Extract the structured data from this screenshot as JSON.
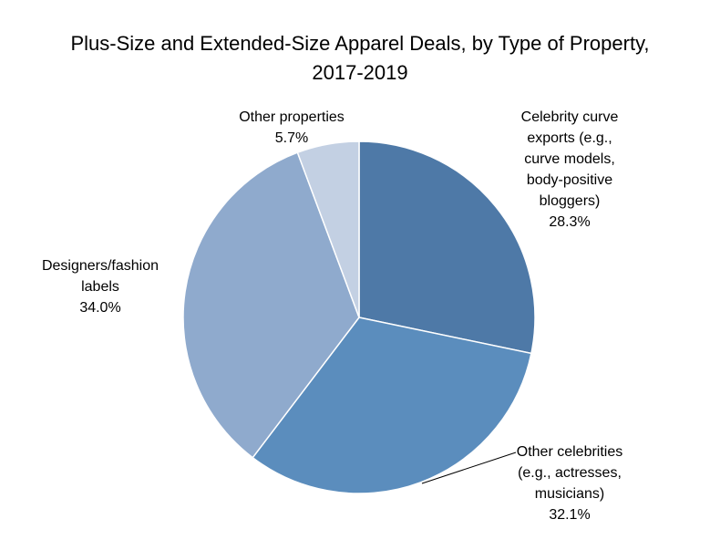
{
  "chart_data": {
    "type": "pie",
    "title_lines": [
      "Plus-Size and Extended-Size Apparel Deals, by Type of Property,",
      "2017-2019"
    ],
    "slices": [
      {
        "label_lines": [
          "Celebrity curve",
          "exports (e.g.,",
          "curve models,",
          "body-positive",
          "bloggers)"
        ],
        "value": 28.3,
        "value_label": "28.3%",
        "color": "#4e79a7"
      },
      {
        "label_lines": [
          "Other celebrities",
          "(e.g., actresses,",
          "musicians)"
        ],
        "value": 32.1,
        "value_label": "32.1%",
        "color": "#5b8dbd"
      },
      {
        "label_lines": [
          "Designers/fashion",
          "labels"
        ],
        "value": 34.0,
        "value_label": "34.0%",
        "color": "#8faacd"
      },
      {
        "label_lines": [
          "Other properties"
        ],
        "value": 5.7,
        "value_label": "5.7%",
        "color": "#c3d0e3"
      }
    ],
    "start_angle_deg": 0,
    "direction": "clockwise"
  }
}
